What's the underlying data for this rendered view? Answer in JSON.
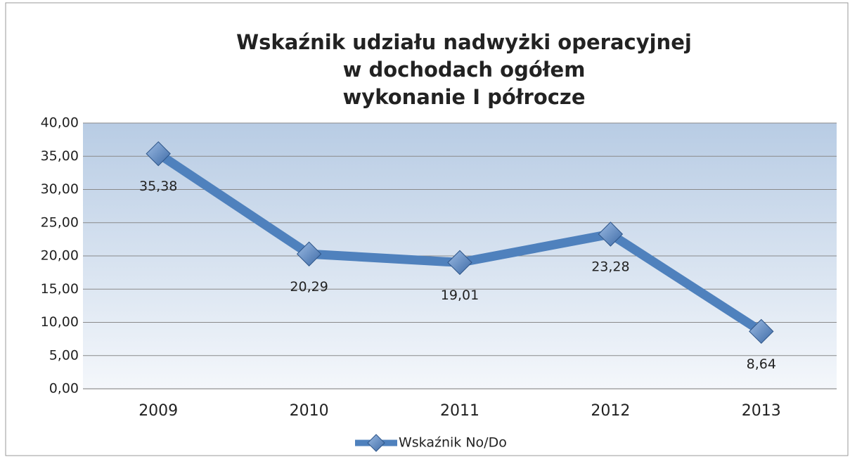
{
  "chart_data": {
    "type": "line",
    "title": [
      "Wskaźnik udziału nadwyżki operacyjnej",
      "w dochodach ogółem",
      "wykonanie I półrocze"
    ],
    "categories": [
      "2009",
      "2010",
      "2011",
      "2012",
      "2013"
    ],
    "series": [
      {
        "name": "Wskaźnik No/Do",
        "color": "#4f81bd",
        "values": [
          35.38,
          20.29,
          19.01,
          23.28,
          8.64
        ],
        "value_labels": [
          "35,38",
          "20,29",
          "19,01",
          "23,28",
          "8,64"
        ]
      }
    ],
    "ylim": [
      0,
      40
    ],
    "yticks": [
      {
        "value": 0,
        "label": "0,00"
      },
      {
        "value": 5,
        "label": "5,00"
      },
      {
        "value": 10,
        "label": "10,00"
      },
      {
        "value": 15,
        "label": "15,00"
      },
      {
        "value": 20,
        "label": "20,00"
      },
      {
        "value": 25,
        "label": "25,00"
      },
      {
        "value": 30,
        "label": "30,00"
      },
      {
        "value": 35,
        "label": "35,00"
      },
      {
        "value": 40,
        "label": "40,00"
      }
    ],
    "grid": true,
    "legend": "bottom"
  }
}
